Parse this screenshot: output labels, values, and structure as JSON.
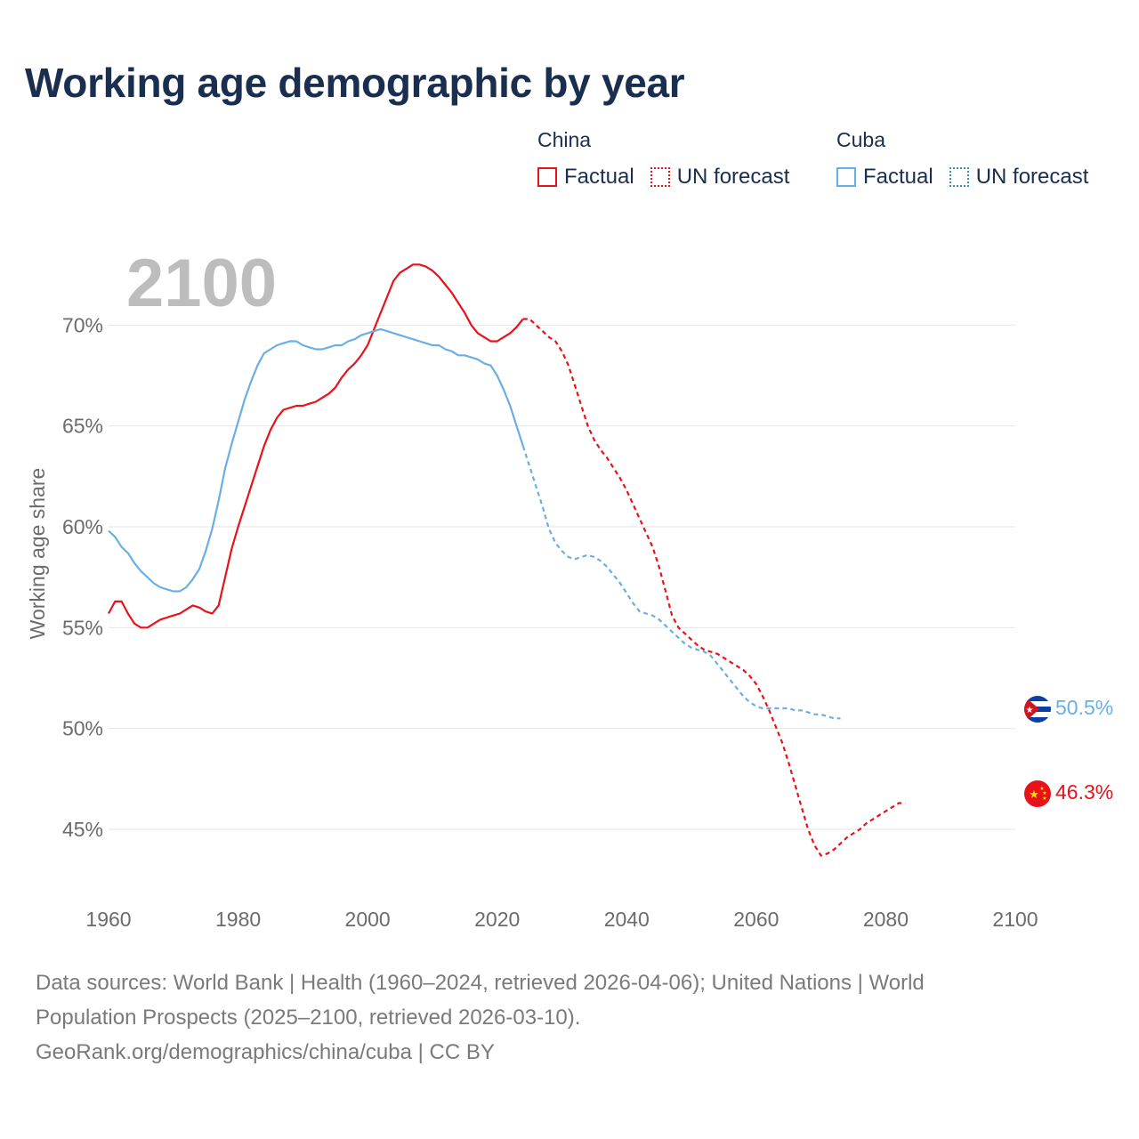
{
  "title": "Working age demographic by year",
  "legend": {
    "china": {
      "name": "China",
      "factual": "Factual",
      "forecast": "UN forecast"
    },
    "cuba": {
      "name": "Cuba",
      "factual": "Factual",
      "forecast": "UN forecast"
    }
  },
  "year_overlay": "2100",
  "source": {
    "line1": "Data sources: World Bank | Health (1960–2024, retrieved 2026-04-06); United Nations | World",
    "line2": "Population Prospects (2025–2100, retrieved 2026-03-10).",
    "line3": "GeoRank.org/demographics/china/cuba | CC BY"
  },
  "colors": {
    "china": "#e8121a",
    "cuba": "#6aaee6",
    "title": "#1a2e4f",
    "axis_text": "#6b6b6b",
    "grid": "#e6e6e6",
    "overlay": "#bdbdbd"
  },
  "chart_data": {
    "type": "line",
    "ylabel": "Working age share",
    "xlabel": "",
    "xlim": [
      1960,
      2100
    ],
    "ylim": [
      42,
      73.5
    ],
    "x_ticks": [
      1960,
      1980,
      2000,
      2020,
      2040,
      2060,
      2080,
      2100
    ],
    "y_ticks": [
      45,
      50,
      55,
      60,
      65,
      70
    ],
    "y_tick_labels": [
      "45%",
      "50%",
      "55%",
      "60%",
      "65%",
      "70%"
    ],
    "series": [
      {
        "name": "China",
        "color": "#e8121a",
        "end_label": "46.3%",
        "factual_until": 2024,
        "points": [
          [
            1960,
            55.7
          ],
          [
            1961,
            56.3
          ],
          [
            1962,
            56.3
          ],
          [
            1963,
            55.7
          ],
          [
            1964,
            55.2
          ],
          [
            1965,
            55.0
          ],
          [
            1966,
            55.0
          ],
          [
            1967,
            55.2
          ],
          [
            1968,
            55.4
          ],
          [
            1969,
            55.5
          ],
          [
            1970,
            55.6
          ],
          [
            1971,
            55.7
          ],
          [
            1972,
            55.9
          ],
          [
            1973,
            56.1
          ],
          [
            1974,
            56.0
          ],
          [
            1975,
            55.8
          ],
          [
            1976,
            55.7
          ],
          [
            1977,
            56.1
          ],
          [
            1978,
            57.5
          ],
          [
            1979,
            58.9
          ],
          [
            1980,
            60.0
          ],
          [
            1981,
            61.0
          ],
          [
            1982,
            62.0
          ],
          [
            1983,
            63.0
          ],
          [
            1984,
            64.0
          ],
          [
            1985,
            64.8
          ],
          [
            1986,
            65.4
          ],
          [
            1987,
            65.8
          ],
          [
            1988,
            65.9
          ],
          [
            1989,
            66.0
          ],
          [
            1990,
            66.0
          ],
          [
            1991,
            66.1
          ],
          [
            1992,
            66.2
          ],
          [
            1993,
            66.4
          ],
          [
            1994,
            66.6
          ],
          [
            1995,
            66.9
          ],
          [
            1996,
            67.4
          ],
          [
            1997,
            67.8
          ],
          [
            1998,
            68.1
          ],
          [
            1999,
            68.5
          ],
          [
            2000,
            69.0
          ],
          [
            2001,
            69.8
          ],
          [
            2002,
            70.6
          ],
          [
            2003,
            71.4
          ],
          [
            2004,
            72.2
          ],
          [
            2005,
            72.6
          ],
          [
            2006,
            72.8
          ],
          [
            2007,
            73.0
          ],
          [
            2008,
            73.0
          ],
          [
            2009,
            72.9
          ],
          [
            2010,
            72.7
          ],
          [
            2011,
            72.4
          ],
          [
            2012,
            72.0
          ],
          [
            2013,
            71.6
          ],
          [
            2014,
            71.1
          ],
          [
            2015,
            70.6
          ],
          [
            2016,
            70.0
          ],
          [
            2017,
            69.6
          ],
          [
            2018,
            69.4
          ],
          [
            2019,
            69.2
          ],
          [
            2020,
            69.2
          ],
          [
            2021,
            69.4
          ],
          [
            2022,
            69.6
          ],
          [
            2023,
            69.9
          ],
          [
            2024,
            70.3
          ],
          [
            2025,
            70.3
          ],
          [
            2026,
            70.0
          ],
          [
            2027,
            69.7
          ],
          [
            2028,
            69.4
          ],
          [
            2029,
            69.2
          ],
          [
            2030,
            68.7
          ],
          [
            2031,
            68.0
          ],
          [
            2032,
            67.0
          ],
          [
            2033,
            66.0
          ],
          [
            2034,
            65.0
          ],
          [
            2035,
            64.3
          ],
          [
            2036,
            63.8
          ],
          [
            2037,
            63.4
          ],
          [
            2038,
            62.9
          ],
          [
            2039,
            62.4
          ],
          [
            2040,
            61.8
          ],
          [
            2041,
            61.1
          ],
          [
            2042,
            60.4
          ],
          [
            2043,
            59.7
          ],
          [
            2044,
            59.0
          ],
          [
            2045,
            58.0
          ],
          [
            2046,
            56.8
          ],
          [
            2047,
            55.6
          ],
          [
            2048,
            55.0
          ],
          [
            2049,
            54.7
          ],
          [
            2050,
            54.4
          ],
          [
            2051,
            54.1
          ],
          [
            2052,
            53.9
          ],
          [
            2053,
            53.8
          ],
          [
            2054,
            53.7
          ],
          [
            2055,
            53.5
          ],
          [
            2056,
            53.3
          ],
          [
            2057,
            53.1
          ],
          [
            2058,
            52.9
          ],
          [
            2059,
            52.6
          ],
          [
            2060,
            52.2
          ],
          [
            2061,
            51.6
          ],
          [
            2062,
            50.9
          ],
          [
            2063,
            50.1
          ],
          [
            2064,
            49.3
          ],
          [
            2065,
            48.3
          ],
          [
            2066,
            47.2
          ],
          [
            2067,
            46.1
          ],
          [
            2068,
            45.0
          ],
          [
            2069,
            44.2
          ],
          [
            2070,
            43.7
          ],
          [
            2071,
            43.8
          ],
          [
            2072,
            44.0
          ],
          [
            2073,
            44.3
          ],
          [
            2074,
            44.6
          ],
          [
            2075,
            44.8
          ],
          [
            2076,
            45.0
          ],
          [
            2077,
            45.3
          ],
          [
            2078,
            45.5
          ],
          [
            2079,
            45.7
          ],
          [
            2080,
            45.9
          ],
          [
            2081,
            46.1
          ],
          [
            2082,
            46.3
          ],
          [
            2083,
            46.3
          ]
        ]
      },
      {
        "name": "Cuba",
        "color": "#6aaee6",
        "end_label": "50.5%",
        "factual_until": 2024,
        "points": [
          [
            1960,
            59.8
          ],
          [
            1961,
            59.5
          ],
          [
            1962,
            59.0
          ],
          [
            1963,
            58.7
          ],
          [
            1964,
            58.2
          ],
          [
            1965,
            57.8
          ],
          [
            1966,
            57.5
          ],
          [
            1967,
            57.2
          ],
          [
            1968,
            57.0
          ],
          [
            1969,
            56.9
          ],
          [
            1970,
            56.8
          ],
          [
            1971,
            56.8
          ],
          [
            1972,
            57.0
          ],
          [
            1973,
            57.4
          ],
          [
            1974,
            57.9
          ],
          [
            1975,
            58.8
          ],
          [
            1976,
            59.9
          ],
          [
            1977,
            61.3
          ],
          [
            1978,
            62.9
          ],
          [
            1979,
            64.1
          ],
          [
            1980,
            65.2
          ],
          [
            1981,
            66.3
          ],
          [
            1982,
            67.2
          ],
          [
            1983,
            68.0
          ],
          [
            1984,
            68.6
          ],
          [
            1985,
            68.8
          ],
          [
            1986,
            69.0
          ],
          [
            1987,
            69.1
          ],
          [
            1988,
            69.2
          ],
          [
            1989,
            69.2
          ],
          [
            1990,
            69.0
          ],
          [
            1991,
            68.9
          ],
          [
            1992,
            68.8
          ],
          [
            1993,
            68.8
          ],
          [
            1994,
            68.9
          ],
          [
            1995,
            69.0
          ],
          [
            1996,
            69.0
          ],
          [
            1997,
            69.2
          ],
          [
            1998,
            69.3
          ],
          [
            1999,
            69.5
          ],
          [
            2000,
            69.6
          ],
          [
            2001,
            69.7
          ],
          [
            2002,
            69.8
          ],
          [
            2003,
            69.7
          ],
          [
            2004,
            69.6
          ],
          [
            2005,
            69.5
          ],
          [
            2006,
            69.4
          ],
          [
            2007,
            69.3
          ],
          [
            2008,
            69.2
          ],
          [
            2009,
            69.1
          ],
          [
            2010,
            69.0
          ],
          [
            2011,
            69.0
          ],
          [
            2012,
            68.8
          ],
          [
            2013,
            68.7
          ],
          [
            2014,
            68.5
          ],
          [
            2015,
            68.5
          ],
          [
            2016,
            68.4
          ],
          [
            2017,
            68.3
          ],
          [
            2018,
            68.1
          ],
          [
            2019,
            68.0
          ],
          [
            2020,
            67.5
          ],
          [
            2021,
            66.8
          ],
          [
            2022,
            66.0
          ],
          [
            2023,
            65.0
          ],
          [
            2024,
            64.0
          ],
          [
            2025,
            63.0
          ],
          [
            2026,
            62.0
          ],
          [
            2027,
            61.0
          ],
          [
            2028,
            59.9
          ],
          [
            2029,
            59.2
          ],
          [
            2030,
            58.8
          ],
          [
            2031,
            58.5
          ],
          [
            2032,
            58.4
          ],
          [
            2033,
            58.5
          ],
          [
            2034,
            58.6
          ],
          [
            2035,
            58.5
          ],
          [
            2036,
            58.3
          ],
          [
            2037,
            58.0
          ],
          [
            2038,
            57.6
          ],
          [
            2039,
            57.2
          ],
          [
            2040,
            56.7
          ],
          [
            2041,
            56.2
          ],
          [
            2042,
            55.8
          ],
          [
            2043,
            55.7
          ],
          [
            2044,
            55.6
          ],
          [
            2045,
            55.4
          ],
          [
            2046,
            55.1
          ],
          [
            2047,
            54.8
          ],
          [
            2048,
            54.5
          ],
          [
            2049,
            54.2
          ],
          [
            2050,
            54.0
          ],
          [
            2051,
            53.9
          ],
          [
            2052,
            53.8
          ],
          [
            2053,
            53.6
          ],
          [
            2054,
            53.2
          ],
          [
            2055,
            52.8
          ],
          [
            2056,
            52.4
          ],
          [
            2057,
            52.0
          ],
          [
            2058,
            51.6
          ],
          [
            2059,
            51.3
          ],
          [
            2060,
            51.1
          ],
          [
            2061,
            51.0
          ],
          [
            2062,
            51.0
          ],
          [
            2063,
            51.0
          ],
          [
            2064,
            51.0
          ],
          [
            2065,
            51.0
          ],
          [
            2066,
            50.9
          ],
          [
            2067,
            50.9
          ],
          [
            2068,
            50.8
          ],
          [
            2069,
            50.7
          ],
          [
            2070,
            50.7
          ],
          [
            2071,
            50.6
          ],
          [
            2072,
            50.5
          ],
          [
            2073,
            50.5
          ]
        ]
      }
    ]
  }
}
